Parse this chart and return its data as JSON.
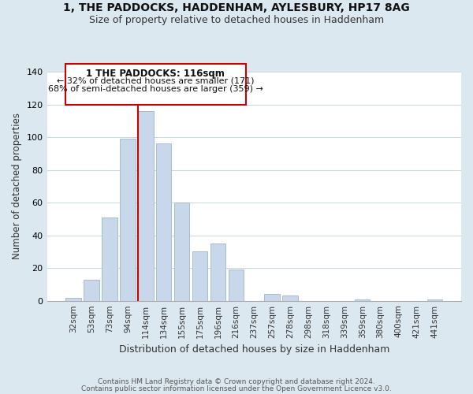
{
  "title": "1, THE PADDOCKS, HADDENHAM, AYLESBURY, HP17 8AG",
  "subtitle": "Size of property relative to detached houses in Haddenham",
  "xlabel": "Distribution of detached houses by size in Haddenham",
  "ylabel": "Number of detached properties",
  "bar_labels": [
    "32sqm",
    "53sqm",
    "73sqm",
    "94sqm",
    "114sqm",
    "134sqm",
    "155sqm",
    "175sqm",
    "196sqm",
    "216sqm",
    "237sqm",
    "257sqm",
    "278sqm",
    "298sqm",
    "318sqm",
    "339sqm",
    "359sqm",
    "380sqm",
    "400sqm",
    "421sqm",
    "441sqm"
  ],
  "bar_values": [
    2,
    13,
    51,
    99,
    116,
    96,
    60,
    30,
    35,
    19,
    0,
    4,
    3,
    0,
    0,
    0,
    1,
    0,
    0,
    0,
    1
  ],
  "bar_color": "#c8d8ea",
  "bar_edge_color": "#a8bece",
  "highlight_index": 4,
  "highlight_line_color": "#cc0000",
  "ylim": [
    0,
    140
  ],
  "yticks": [
    0,
    20,
    40,
    60,
    80,
    100,
    120,
    140
  ],
  "annotation_title": "1 THE PADDOCKS: 116sqm",
  "annotation_line1": "← 32% of detached houses are smaller (171)",
  "annotation_line2": "68% of semi-detached houses are larger (359) →",
  "annotation_box_color": "#ffffff",
  "annotation_box_edge_color": "#cc0000",
  "footer_line1": "Contains HM Land Registry data © Crown copyright and database right 2024.",
  "footer_line2": "Contains public sector information licensed under the Open Government Licence v3.0.",
  "background_color": "#dce8f0",
  "plot_background_color": "#ffffff",
  "title_fontsize": 10,
  "subtitle_fontsize": 9
}
